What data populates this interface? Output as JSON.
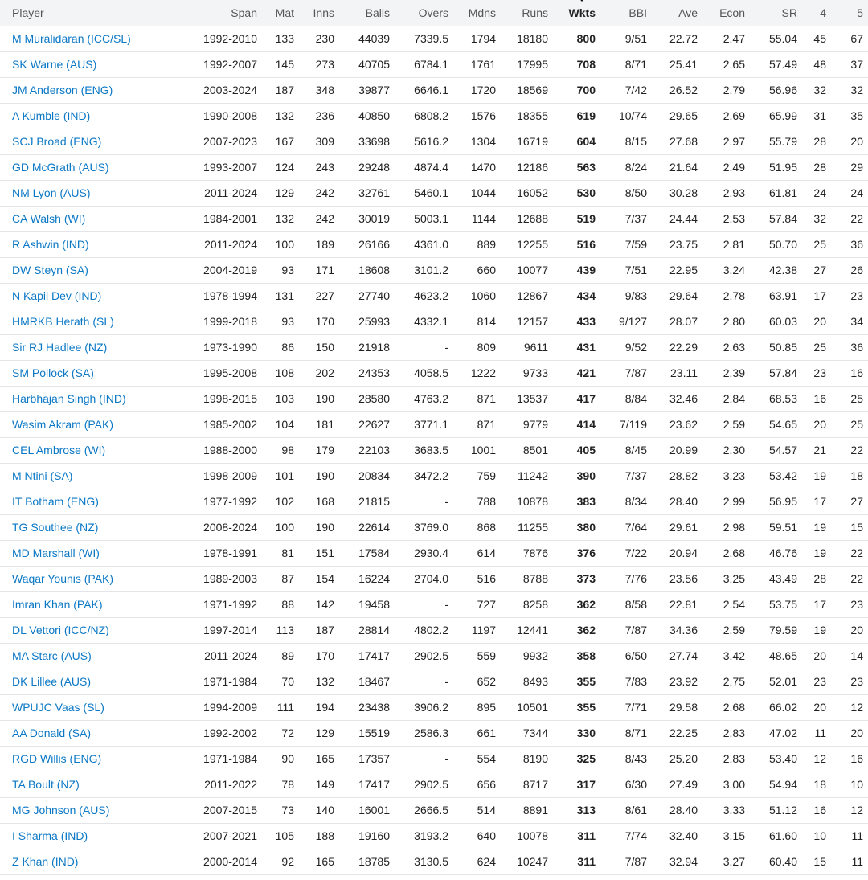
{
  "table": {
    "columns": [
      "Player",
      "Span",
      "Mat",
      "Inns",
      "Balls",
      "Overs",
      "Mdns",
      "Runs",
      "Wkts",
      "BBI",
      "Ave",
      "Econ",
      "SR",
      "4",
      "5"
    ],
    "rows": [
      [
        "M Muralidaran (ICC/SL)",
        "1992-2010",
        "133",
        "230",
        "44039",
        "7339.5",
        "1794",
        "18180",
        "800",
        "9/51",
        "22.72",
        "2.47",
        "55.04",
        "45",
        "67"
      ],
      [
        "SK Warne (AUS)",
        "1992-2007",
        "145",
        "273",
        "40705",
        "6784.1",
        "1761",
        "17995",
        "708",
        "8/71",
        "25.41",
        "2.65",
        "57.49",
        "48",
        "37"
      ],
      [
        "JM Anderson (ENG)",
        "2003-2024",
        "187",
        "348",
        "39877",
        "6646.1",
        "1720",
        "18569",
        "700",
        "7/42",
        "26.52",
        "2.79",
        "56.96",
        "32",
        "32"
      ],
      [
        "A Kumble (IND)",
        "1990-2008",
        "132",
        "236",
        "40850",
        "6808.2",
        "1576",
        "18355",
        "619",
        "10/74",
        "29.65",
        "2.69",
        "65.99",
        "31",
        "35"
      ],
      [
        "SCJ Broad (ENG)",
        "2007-2023",
        "167",
        "309",
        "33698",
        "5616.2",
        "1304",
        "16719",
        "604",
        "8/15",
        "27.68",
        "2.97",
        "55.79",
        "28",
        "20"
      ],
      [
        "GD McGrath (AUS)",
        "1993-2007",
        "124",
        "243",
        "29248",
        "4874.4",
        "1470",
        "12186",
        "563",
        "8/24",
        "21.64",
        "2.49",
        "51.95",
        "28",
        "29"
      ],
      [
        "NM Lyon (AUS)",
        "2011-2024",
        "129",
        "242",
        "32761",
        "5460.1",
        "1044",
        "16052",
        "530",
        "8/50",
        "30.28",
        "2.93",
        "61.81",
        "24",
        "24"
      ],
      [
        "CA Walsh (WI)",
        "1984-2001",
        "132",
        "242",
        "30019",
        "5003.1",
        "1144",
        "12688",
        "519",
        "7/37",
        "24.44",
        "2.53",
        "57.84",
        "32",
        "22"
      ],
      [
        "R Ashwin (IND)",
        "2011-2024",
        "100",
        "189",
        "26166",
        "4361.0",
        "889",
        "12255",
        "516",
        "7/59",
        "23.75",
        "2.81",
        "50.70",
        "25",
        "36"
      ],
      [
        "DW Steyn (SA)",
        "2004-2019",
        "93",
        "171",
        "18608",
        "3101.2",
        "660",
        "10077",
        "439",
        "7/51",
        "22.95",
        "3.24",
        "42.38",
        "27",
        "26"
      ],
      [
        "N Kapil Dev (IND)",
        "1978-1994",
        "131",
        "227",
        "27740",
        "4623.2",
        "1060",
        "12867",
        "434",
        "9/83",
        "29.64",
        "2.78",
        "63.91",
        "17",
        "23"
      ],
      [
        "HMRKB Herath (SL)",
        "1999-2018",
        "93",
        "170",
        "25993",
        "4332.1",
        "814",
        "12157",
        "433",
        "9/127",
        "28.07",
        "2.80",
        "60.03",
        "20",
        "34"
      ],
      [
        "Sir RJ Hadlee (NZ)",
        "1973-1990",
        "86",
        "150",
        "21918",
        "-",
        "809",
        "9611",
        "431",
        "9/52",
        "22.29",
        "2.63",
        "50.85",
        "25",
        "36"
      ],
      [
        "SM Pollock (SA)",
        "1995-2008",
        "108",
        "202",
        "24353",
        "4058.5",
        "1222",
        "9733",
        "421",
        "7/87",
        "23.11",
        "2.39",
        "57.84",
        "23",
        "16"
      ],
      [
        "Harbhajan Singh (IND)",
        "1998-2015",
        "103",
        "190",
        "28580",
        "4763.2",
        "871",
        "13537",
        "417",
        "8/84",
        "32.46",
        "2.84",
        "68.53",
        "16",
        "25"
      ],
      [
        "Wasim Akram (PAK)",
        "1985-2002",
        "104",
        "181",
        "22627",
        "3771.1",
        "871",
        "9779",
        "414",
        "7/119",
        "23.62",
        "2.59",
        "54.65",
        "20",
        "25"
      ],
      [
        "CEL Ambrose (WI)",
        "1988-2000",
        "98",
        "179",
        "22103",
        "3683.5",
        "1001",
        "8501",
        "405",
        "8/45",
        "20.99",
        "2.30",
        "54.57",
        "21",
        "22"
      ],
      [
        "M Ntini (SA)",
        "1998-2009",
        "101",
        "190",
        "20834",
        "3472.2",
        "759",
        "11242",
        "390",
        "7/37",
        "28.82",
        "3.23",
        "53.42",
        "19",
        "18"
      ],
      [
        "IT Botham (ENG)",
        "1977-1992",
        "102",
        "168",
        "21815",
        "-",
        "788",
        "10878",
        "383",
        "8/34",
        "28.40",
        "2.99",
        "56.95",
        "17",
        "27"
      ],
      [
        "TG Southee (NZ)",
        "2008-2024",
        "100",
        "190",
        "22614",
        "3769.0",
        "868",
        "11255",
        "380",
        "7/64",
        "29.61",
        "2.98",
        "59.51",
        "19",
        "15"
      ],
      [
        "MD Marshall (WI)",
        "1978-1991",
        "81",
        "151",
        "17584",
        "2930.4",
        "614",
        "7876",
        "376",
        "7/22",
        "20.94",
        "2.68",
        "46.76",
        "19",
        "22"
      ],
      [
        "Waqar Younis (PAK)",
        "1989-2003",
        "87",
        "154",
        "16224",
        "2704.0",
        "516",
        "8788",
        "373",
        "7/76",
        "23.56",
        "3.25",
        "43.49",
        "28",
        "22"
      ],
      [
        "Imran Khan (PAK)",
        "1971-1992",
        "88",
        "142",
        "19458",
        "-",
        "727",
        "8258",
        "362",
        "8/58",
        "22.81",
        "2.54",
        "53.75",
        "17",
        "23"
      ],
      [
        "DL Vettori (ICC/NZ)",
        "1997-2014",
        "113",
        "187",
        "28814",
        "4802.2",
        "1197",
        "12441",
        "362",
        "7/87",
        "34.36",
        "2.59",
        "79.59",
        "19",
        "20"
      ],
      [
        "MA Starc (AUS)",
        "2011-2024",
        "89",
        "170",
        "17417",
        "2902.5",
        "559",
        "9932",
        "358",
        "6/50",
        "27.74",
        "3.42",
        "48.65",
        "20",
        "14"
      ],
      [
        "DK Lillee (AUS)",
        "1971-1984",
        "70",
        "132",
        "18467",
        "-",
        "652",
        "8493",
        "355",
        "7/83",
        "23.92",
        "2.75",
        "52.01",
        "23",
        "23"
      ],
      [
        "WPUJC Vaas (SL)",
        "1994-2009",
        "111",
        "194",
        "23438",
        "3906.2",
        "895",
        "10501",
        "355",
        "7/71",
        "29.58",
        "2.68",
        "66.02",
        "20",
        "12"
      ],
      [
        "AA Donald (SA)",
        "1992-2002",
        "72",
        "129",
        "15519",
        "2586.3",
        "661",
        "7344",
        "330",
        "8/71",
        "22.25",
        "2.83",
        "47.02",
        "11",
        "20"
      ],
      [
        "RGD Willis (ENG)",
        "1971-1984",
        "90",
        "165",
        "17357",
        "-",
        "554",
        "8190",
        "325",
        "8/43",
        "25.20",
        "2.83",
        "53.40",
        "12",
        "16"
      ],
      [
        "TA Boult (NZ)",
        "2011-2022",
        "78",
        "149",
        "17417",
        "2902.5",
        "656",
        "8717",
        "317",
        "6/30",
        "27.49",
        "3.00",
        "54.94",
        "18",
        "10"
      ],
      [
        "MG Johnson (AUS)",
        "2007-2015",
        "73",
        "140",
        "16001",
        "2666.5",
        "514",
        "8891",
        "313",
        "8/61",
        "28.40",
        "3.33",
        "51.12",
        "16",
        "12"
      ],
      [
        "I Sharma (IND)",
        "2007-2021",
        "105",
        "188",
        "19160",
        "3193.2",
        "640",
        "10078",
        "311",
        "7/74",
        "32.40",
        "3.15",
        "61.60",
        "10",
        "11"
      ],
      [
        "Z Khan (IND)",
        "2000-2014",
        "92",
        "165",
        "18785",
        "3130.5",
        "624",
        "10247",
        "311",
        "7/87",
        "32.94",
        "3.27",
        "60.40",
        "15",
        "11"
      ]
    ]
  },
  "sort_indicator": {
    "column": "Wkts",
    "icon": "caret-down-icon"
  },
  "colors": {
    "link": "#0b78c6",
    "header_bg": "#f3f4f6",
    "row_border": "#e3e5e8",
    "text": "#222222"
  }
}
